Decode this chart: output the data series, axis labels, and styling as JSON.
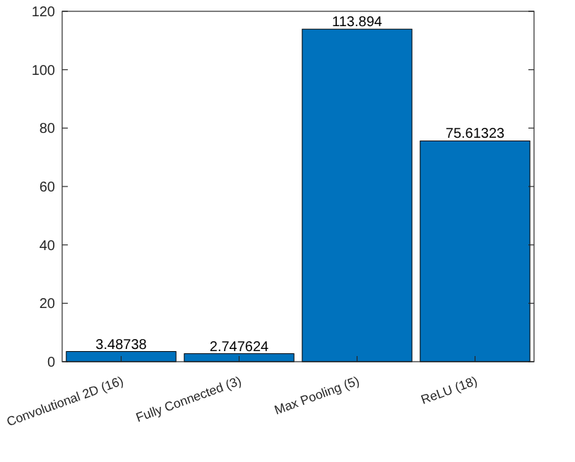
{
  "chart_data": {
    "type": "bar",
    "categories": [
      "Convolutional 2D (16)",
      "Fully Connected (3)",
      "Max Pooling (5)",
      "ReLU (18)"
    ],
    "values": [
      3.48738,
      2.747624,
      113.894,
      75.61323
    ],
    "color": "#0072bd",
    "ylim": [
      0,
      120
    ],
    "yticks": [
      0,
      20,
      40,
      60,
      80,
      100,
      120
    ],
    "data_labels": true,
    "grid": false
  }
}
